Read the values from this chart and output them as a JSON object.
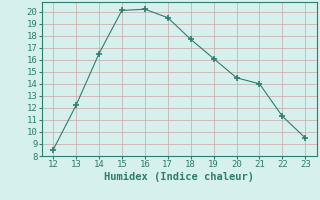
{
  "x": [
    12,
    13,
    14,
    15,
    16,
    17,
    18,
    19,
    20,
    21,
    22,
    23
  ],
  "y": [
    8.5,
    12.2,
    16.5,
    20.1,
    20.2,
    19.5,
    17.7,
    16.1,
    14.5,
    14.0,
    11.3,
    9.5
  ],
  "xlabel": "Humidex (Indice chaleur)",
  "xlim": [
    11.5,
    23.5
  ],
  "ylim": [
    8,
    20.8
  ],
  "yticks": [
    8,
    9,
    10,
    11,
    12,
    13,
    14,
    15,
    16,
    17,
    18,
    19,
    20
  ],
  "xticks": [
    12,
    13,
    14,
    15,
    16,
    17,
    18,
    19,
    20,
    21,
    22,
    23
  ],
  "line_color": "#2e7d6e",
  "marker": "+",
  "background_color": "#d6f0ee",
  "grid_color_major": "#c8a8a8",
  "grid_color_minor": "#b8dcd8",
  "xlabel_fontsize": 7.5,
  "tick_fontsize": 6.5
}
